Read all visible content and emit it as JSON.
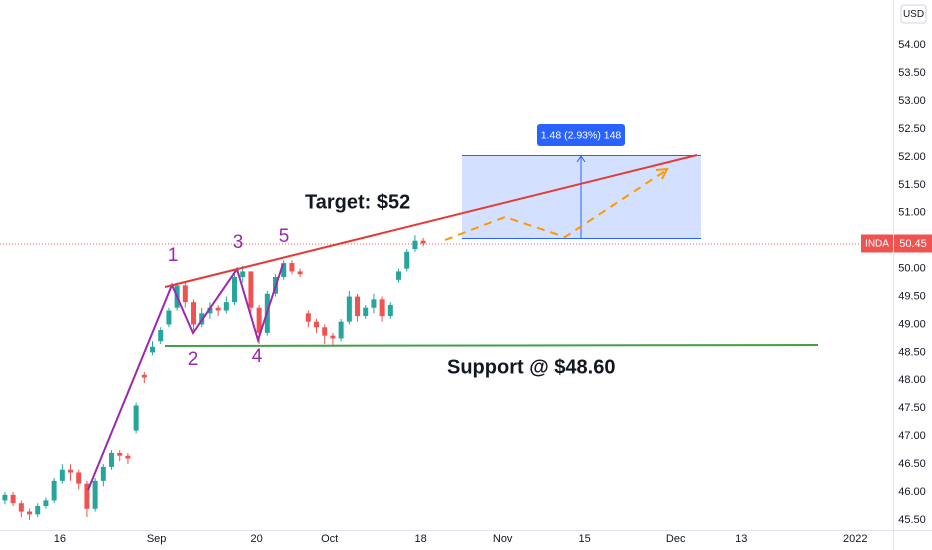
{
  "chart_data": {
    "type": "candlestick",
    "symbol": "INDA",
    "currency": "USD",
    "last_price": {
      "value": 50.45,
      "label": "50.45"
    },
    "up_color": "#26a69a",
    "down_color": "#ef5350",
    "open": [
      45.85,
      45.95,
      45.8,
      45.65,
      45.6,
      45.75,
      45.85,
      46.2,
      46.4,
      46.35,
      46.15,
      45.7,
      46.2,
      46.45,
      46.7,
      46.65,
      47.1,
      48.1,
      48.5,
      48.7,
      49.0,
      49.3,
      49.7,
      49.4,
      49.0,
      49.2,
      49.3,
      49.25,
      49.4,
      49.85,
      49.95,
      49.3,
      48.85,
      49.55,
      49.85,
      50.1,
      49.95,
      49.2,
      49.05,
      48.95,
      48.8,
      48.75,
      49.05,
      49.5,
      49.15,
      49.3,
      49.45,
      49.15,
      49.8,
      50.0,
      50.35,
      50.5
    ],
    "high": [
      46.0,
      46.0,
      45.85,
      45.7,
      45.8,
      45.9,
      46.25,
      46.5,
      46.5,
      46.4,
      46.2,
      46.25,
      46.5,
      46.75,
      46.75,
      46.7,
      47.6,
      48.15,
      48.7,
      48.95,
      49.3,
      49.75,
      49.75,
      49.45,
      49.3,
      49.4,
      49.35,
      49.5,
      49.9,
      50.05,
      49.95,
      49.35,
      49.6,
      49.9,
      50.15,
      50.15,
      50.0,
      49.25,
      49.1,
      49.0,
      48.85,
      49.1,
      49.6,
      49.55,
      49.35,
      49.55,
      49.5,
      49.4,
      50.0,
      50.35,
      50.6,
      50.55
    ],
    "low": [
      45.78,
      45.75,
      45.55,
      45.5,
      45.55,
      45.7,
      45.8,
      46.15,
      46.2,
      46.05,
      45.55,
      45.65,
      46.1,
      46.4,
      46.55,
      46.5,
      47.05,
      47.95,
      48.45,
      48.65,
      48.95,
      49.25,
      49.3,
      48.9,
      48.95,
      49.1,
      49.15,
      49.2,
      49.35,
      49.75,
      49.2,
      48.65,
      48.8,
      49.5,
      49.8,
      49.9,
      49.85,
      48.95,
      48.85,
      48.65,
      48.6,
      48.7,
      49.0,
      49.05,
      49.1,
      49.2,
      49.05,
      49.1,
      49.75,
      49.95,
      50.3,
      50.4
    ],
    "close": [
      45.95,
      45.8,
      45.65,
      45.6,
      45.75,
      45.85,
      46.2,
      46.4,
      46.35,
      46.15,
      45.7,
      46.2,
      46.45,
      46.7,
      46.65,
      46.6,
      47.55,
      48.05,
      48.6,
      48.9,
      49.25,
      49.7,
      49.4,
      49.0,
      49.2,
      49.3,
      49.25,
      49.4,
      49.85,
      49.95,
      49.3,
      48.85,
      49.55,
      49.85,
      50.1,
      49.95,
      49.9,
      49.05,
      48.95,
      48.8,
      48.75,
      49.05,
      49.5,
      49.15,
      49.3,
      49.45,
      49.15,
      49.35,
      49.95,
      50.3,
      50.5,
      50.45
    ],
    "xlim": [
      -0.6,
      108.3
    ],
    "xticks": [
      {
        "value": 6.7,
        "label": "16"
      },
      {
        "value": 18.5,
        "label": "Sep"
      },
      {
        "value": 30.7,
        "label": "20"
      },
      {
        "value": 39.6,
        "label": "Oct"
      },
      {
        "value": 50.7,
        "label": "18"
      },
      {
        "value": 60.7,
        "label": "Nov"
      },
      {
        "value": 70.7,
        "label": "15"
      },
      {
        "value": 81.8,
        "label": "Dec"
      },
      {
        "value": 89.8,
        "label": "13"
      },
      {
        "value": 103.7,
        "label": "2022"
      }
    ],
    "ylim": [
      45.32,
      54.81
    ],
    "yticks": [
      {
        "value": 45.5,
        "label": "45.50"
      },
      {
        "value": 46,
        "label": "46.00"
      },
      {
        "value": 46.5,
        "label": "46.50"
      },
      {
        "value": 47,
        "label": "47.00"
      },
      {
        "value": 47.5,
        "label": "47.50"
      },
      {
        "value": 48,
        "label": "48.00"
      },
      {
        "value": 48.5,
        "label": "48.50"
      },
      {
        "value": 49,
        "label": "49.00"
      },
      {
        "value": 49.5,
        "label": "49.50"
      },
      {
        "value": 50,
        "label": "50.00"
      },
      {
        "value": 50.5,
        "label": "50.50"
      },
      {
        "value": 51,
        "label": "51.00"
      },
      {
        "value": 51.5,
        "label": "51.50"
      },
      {
        "value": 52,
        "label": "52.00"
      },
      {
        "value": 52.5,
        "label": "52.50"
      },
      {
        "value": 53,
        "label": "53.00"
      },
      {
        "value": 53.5,
        "label": "53.50"
      },
      {
        "value": 54,
        "label": "54.00"
      }
    ],
    "annotations": {
      "wave_labels": [
        "1",
        "2",
        "3",
        "4",
        "5"
      ],
      "target": "Target: $52",
      "support": "Support @ $48.60",
      "measure": "1.48 (2.93%) 148"
    }
  }
}
